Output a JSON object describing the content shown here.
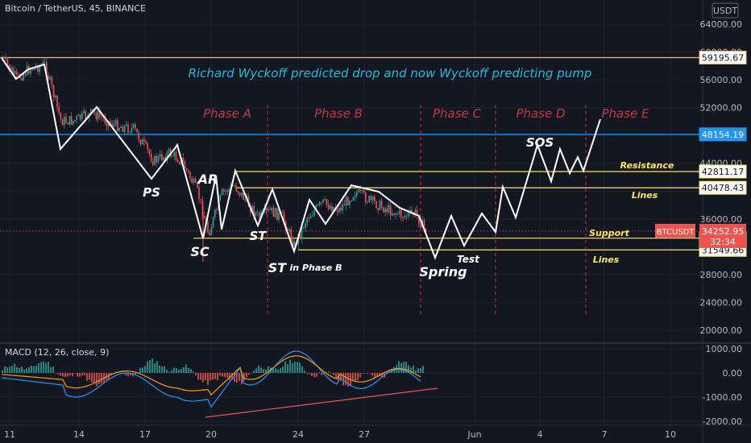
{
  "header": {
    "symbol_title": "Bitcoin / TetherUS, 45, BINANCE",
    "currency": "USDT"
  },
  "macd": {
    "label": "MACD (12, 26, close, 9)"
  },
  "colors": {
    "background": "#131722",
    "grid": "#1e222d",
    "text": "#b2b5be",
    "candle_up": "#26a69a",
    "candle_down": "#ef5350",
    "white_line": "#ffffff",
    "yellow": "#ffe55c",
    "phase_red": "#c4373a",
    "title_cyan": "#26b8d8",
    "blue_line": "#2962ff",
    "macd_line": "#2196f3",
    "signal_line": "#ff9800"
  },
  "chart_data": {
    "type": "candlestick",
    "title": "Richard Wyckoff predicted drop and now Wyckoff predicting pump",
    "x_ticks": [
      "11",
      "14",
      "17",
      "20",
      "24",
      "27",
      "Jun",
      "4",
      "7",
      "10"
    ],
    "y_ticks": [
      "64000.00",
      "60000.00",
      "56000.00",
      "52000.00",
      "48000.00",
      "44000.00",
      "40000.00",
      "36000.00",
      "28000.00",
      "24000.00",
      "20000.00"
    ],
    "y_range": [
      17500,
      66000
    ],
    "horizontal_levels": [
      {
        "value": "59195.67",
        "color": "#f0b860"
      },
      {
        "value": "48154.19",
        "color": "#2196f3"
      },
      {
        "value": "42811.17",
        "color": "#ffe55c"
      },
      {
        "value": "40478.43",
        "color": "#ffe55c"
      },
      {
        "value": "33238.89",
        "color": "#ffe55c"
      },
      {
        "value": "31549.66",
        "color": "#ffe55c"
      }
    ],
    "current_price": {
      "symbol": "BTCUSDT",
      "value": "34252.95",
      "countdown": "32:34"
    },
    "phases": [
      "Phase A",
      "Phase B",
      "Phase C",
      "Phase D",
      "Phase E"
    ],
    "annotations": [
      "PS",
      "SC",
      "AR",
      "ST",
      "ST",
      "in Phase B",
      "Spring",
      "Test",
      "SOS",
      "Resistance",
      "Lines",
      "Support",
      "Lines"
    ],
    "macd_y_ticks": [
      "1000.00",
      "0.00",
      "-1000.00",
      "-2000.00"
    ],
    "macd_range": [
      -2100,
      1100
    ]
  }
}
